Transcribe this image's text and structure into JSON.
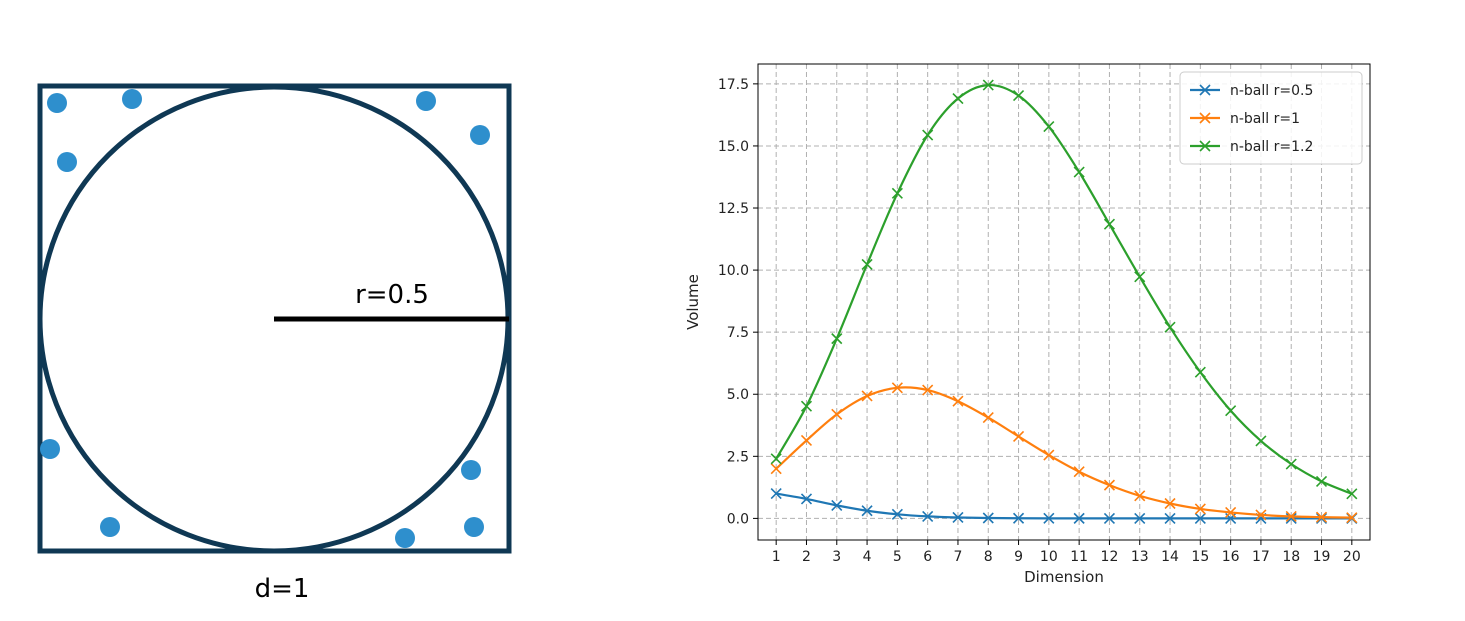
{
  "diagram": {
    "radius_label": "r=0.5",
    "diameter_label": "d=1",
    "colors": {
      "outline": "#0f3854",
      "point": "#2e8fcd",
      "radius_line": "#000000"
    }
  },
  "chart_data": {
    "type": "line",
    "title": "",
    "xlabel": "Dimension",
    "ylabel": "Volume",
    "x": [
      1,
      2,
      3,
      4,
      5,
      6,
      7,
      8,
      9,
      10,
      11,
      12,
      13,
      14,
      15,
      16,
      17,
      18,
      19,
      20
    ],
    "xlim": [
      0.4,
      20.6
    ],
    "ylim": [
      -0.87,
      18.3
    ],
    "yticks": [
      0.0,
      2.5,
      5.0,
      7.5,
      10.0,
      12.5,
      15.0,
      17.5
    ],
    "ytick_labels": [
      "0.0",
      "2.5",
      "5.0",
      "7.5",
      "10.0",
      "12.5",
      "15.0",
      "17.5"
    ],
    "xtick_labels": [
      "1",
      "2",
      "3",
      "4",
      "5",
      "6",
      "7",
      "8",
      "9",
      "10",
      "11",
      "12",
      "13",
      "14",
      "15",
      "16",
      "17",
      "18",
      "19",
      "20"
    ],
    "grid": true,
    "legend_position": "top-right",
    "marker": "x",
    "series": [
      {
        "name": "n-ball r=0.5",
        "color": "#1f77b4",
        "values": [
          1.0,
          0.785,
          0.524,
          0.308,
          0.164,
          0.081,
          0.037,
          0.016,
          0.006,
          0.002,
          0.001,
          0.0,
          0.0,
          0.0,
          0.0,
          0.0,
          0.0,
          0.0,
          0.0,
          0.0
        ]
      },
      {
        "name": "n-ball r=1",
        "color": "#ff7f0e",
        "values": [
          2.0,
          3.14,
          4.19,
          4.93,
          5.26,
          5.17,
          4.72,
          4.06,
          3.3,
          2.55,
          1.88,
          1.34,
          0.91,
          0.6,
          0.38,
          0.24,
          0.14,
          0.08,
          0.05,
          0.03
        ]
      },
      {
        "name": "n-ball r=1.2",
        "color": "#2ca02c",
        "values": [
          2.4,
          4.52,
          7.24,
          10.23,
          13.09,
          15.44,
          16.91,
          17.45,
          17.03,
          15.78,
          13.95,
          11.85,
          9.73,
          7.7,
          5.89,
          4.34,
          3.12,
          2.19,
          1.49,
          0.99
        ]
      }
    ]
  }
}
